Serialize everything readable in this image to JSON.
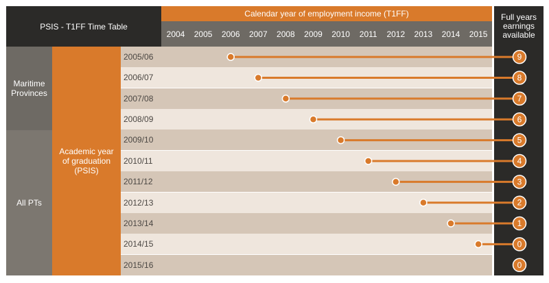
{
  "header": {
    "table_title": "PSIS - T1FF Time Table",
    "calendar_title": "Calendar year of employment income (T1FF)",
    "years": [
      "2004",
      "2005",
      "2006",
      "2007",
      "2008",
      "2009",
      "2010",
      "2011",
      "2012",
      "2013",
      "2014",
      "2015"
    ],
    "right_title": "Full years earnings available"
  },
  "groups": {
    "maritime": "Maritime Provinces",
    "all_pts": "All PTs",
    "academic_label": "Academic year of graduation (PSIS)"
  },
  "rows": [
    {
      "grad_year": "2005/06",
      "start_year": "2006",
      "full_years": "9"
    },
    {
      "grad_year": "2006/07",
      "start_year": "2007",
      "full_years": "8"
    },
    {
      "grad_year": "2007/08",
      "start_year": "2008",
      "full_years": "7"
    },
    {
      "grad_year": "2008/09",
      "start_year": "2009",
      "full_years": "6"
    },
    {
      "grad_year": "2009/10",
      "start_year": "2010",
      "full_years": "5"
    },
    {
      "grad_year": "2010/11",
      "start_year": "2011",
      "full_years": "4"
    },
    {
      "grad_year": "2011/12",
      "start_year": "2012",
      "full_years": "3"
    },
    {
      "grad_year": "2012/13",
      "start_year": "2013",
      "full_years": "2"
    },
    {
      "grad_year": "2013/14",
      "start_year": "2014",
      "full_years": "1"
    },
    {
      "grad_year": "2014/15",
      "start_year": "2015",
      "full_years": "0"
    },
    {
      "grad_year": "2015/16",
      "start_year": null,
      "full_years": "0"
    }
  ],
  "colors": {
    "accent": "#d97a2b",
    "header_dark": "#2b2a28",
    "header_gray": "#6e6a64",
    "row_dark": "#d5c6b7",
    "row_light": "#efe6dd"
  }
}
